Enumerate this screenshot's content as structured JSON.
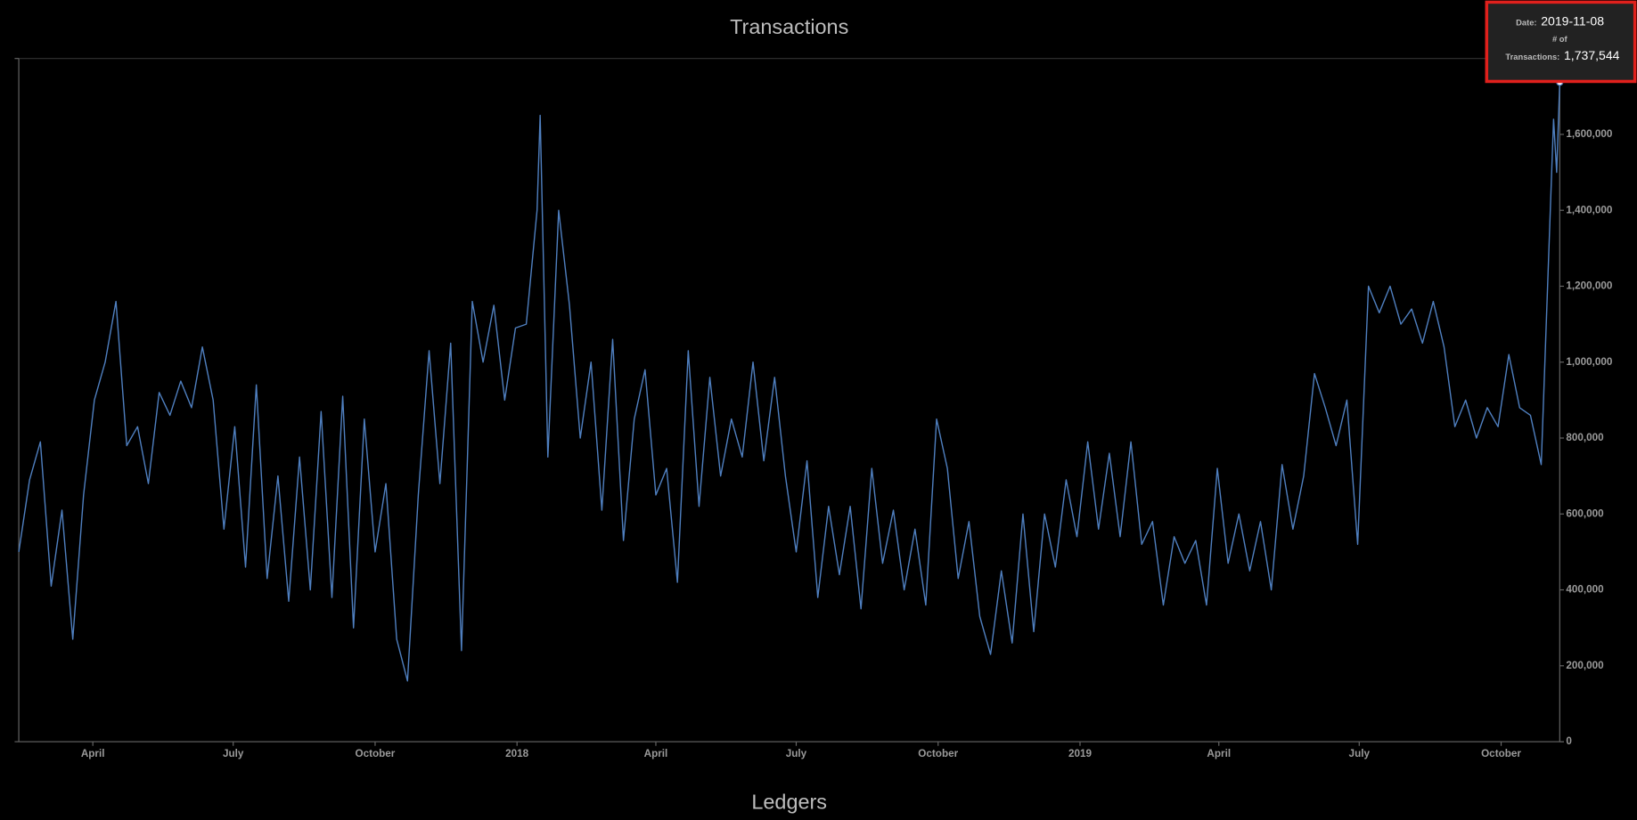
{
  "chart_data": {
    "type": "line",
    "title": "Transactions",
    "x": [
      "2017-02-12",
      "2017-02-19",
      "2017-02-26",
      "2017-03-05",
      "2017-03-12",
      "2017-03-19",
      "2017-03-26",
      "2017-04-02",
      "2017-04-09",
      "2017-04-16",
      "2017-04-23",
      "2017-04-30",
      "2017-05-07",
      "2017-05-14",
      "2017-05-21",
      "2017-05-28",
      "2017-06-04",
      "2017-06-11",
      "2017-06-18",
      "2017-06-25",
      "2017-07-02",
      "2017-07-09",
      "2017-07-16",
      "2017-07-23",
      "2017-07-30",
      "2017-08-06",
      "2017-08-13",
      "2017-08-20",
      "2017-08-27",
      "2017-09-03",
      "2017-09-10",
      "2017-09-17",
      "2017-09-24",
      "2017-10-01",
      "2017-10-08",
      "2017-10-15",
      "2017-10-22",
      "2017-10-29",
      "2017-11-05",
      "2017-11-12",
      "2017-11-19",
      "2017-11-26",
      "2017-12-03",
      "2017-12-10",
      "2017-12-17",
      "2017-12-24",
      "2017-12-31",
      "2018-01-07",
      "2018-01-14",
      "2018-01-16",
      "2018-01-21",
      "2018-01-28",
      "2018-02-04",
      "2018-02-11",
      "2018-02-18",
      "2018-02-25",
      "2018-03-04",
      "2018-03-11",
      "2018-03-18",
      "2018-03-25",
      "2018-04-01",
      "2018-04-08",
      "2018-04-15",
      "2018-04-22",
      "2018-04-29",
      "2018-05-06",
      "2018-05-13",
      "2018-05-20",
      "2018-05-27",
      "2018-06-03",
      "2018-06-10",
      "2018-06-17",
      "2018-06-24",
      "2018-07-01",
      "2018-07-08",
      "2018-07-15",
      "2018-07-22",
      "2018-07-29",
      "2018-08-05",
      "2018-08-12",
      "2018-08-19",
      "2018-08-26",
      "2018-09-02",
      "2018-09-09",
      "2018-09-16",
      "2018-09-23",
      "2018-09-30",
      "2018-10-07",
      "2018-10-14",
      "2018-10-21",
      "2018-10-28",
      "2018-11-04",
      "2018-11-11",
      "2018-11-18",
      "2018-11-25",
      "2018-12-02",
      "2018-12-09",
      "2018-12-16",
      "2018-12-23",
      "2018-12-30",
      "2019-01-06",
      "2019-01-13",
      "2019-01-20",
      "2019-01-27",
      "2019-02-03",
      "2019-02-10",
      "2019-02-17",
      "2019-02-24",
      "2019-03-03",
      "2019-03-10",
      "2019-03-17",
      "2019-03-24",
      "2019-03-31",
      "2019-04-07",
      "2019-04-14",
      "2019-04-21",
      "2019-04-28",
      "2019-05-05",
      "2019-05-12",
      "2019-05-19",
      "2019-05-26",
      "2019-06-02",
      "2019-06-09",
      "2019-06-16",
      "2019-06-23",
      "2019-06-30",
      "2019-07-07",
      "2019-07-14",
      "2019-07-21",
      "2019-07-28",
      "2019-08-04",
      "2019-08-11",
      "2019-08-18",
      "2019-08-25",
      "2019-09-01",
      "2019-09-08",
      "2019-09-15",
      "2019-09-22",
      "2019-09-29",
      "2019-10-06",
      "2019-10-13",
      "2019-10-20",
      "2019-10-27",
      "2019-11-01",
      "2019-11-04",
      "2019-11-06",
      "2019-11-08"
    ],
    "series": [
      {
        "name": "Transactions",
        "color": "#4f7fbf",
        "values": [
          500000,
          690000,
          790000,
          410000,
          610000,
          270000,
          650000,
          900000,
          1000000,
          1160000,
          780000,
          830000,
          680000,
          920000,
          860000,
          950000,
          880000,
          1040000,
          900000,
          560000,
          830000,
          460000,
          940000,
          430000,
          700000,
          370000,
          750000,
          400000,
          870000,
          380000,
          910000,
          300000,
          850000,
          500000,
          680000,
          270000,
          160000,
          650000,
          1030000,
          680000,
          1050000,
          240000,
          1160000,
          1000000,
          1150000,
          900000,
          1090000,
          1100000,
          1400000,
          1650000,
          750000,
          1400000,
          1150000,
          800000,
          1000000,
          610000,
          1060000,
          530000,
          850000,
          980000,
          650000,
          720000,
          420000,
          1030000,
          620000,
          960000,
          700000,
          850000,
          750000,
          1000000,
          740000,
          960000,
          700000,
          500000,
          740000,
          380000,
          620000,
          440000,
          620000,
          350000,
          720000,
          470000,
          610000,
          400000,
          560000,
          360000,
          850000,
          720000,
          430000,
          580000,
          330000,
          230000,
          450000,
          260000,
          600000,
          290000,
          600000,
          460000,
          690000,
          540000,
          790000,
          560000,
          760000,
          540000,
          790000,
          520000,
          580000,
          360000,
          540000,
          470000,
          530000,
          360000,
          720000,
          470000,
          600000,
          450000,
          580000,
          400000,
          730000,
          560000,
          700000,
          970000,
          880000,
          780000,
          900000,
          520000,
          1200000,
          1130000,
          1200000,
          1100000,
          1140000,
          1050000,
          1160000,
          1040000,
          830000,
          900000,
          800000,
          880000,
          830000,
          1020000,
          880000,
          860000,
          730000,
          1300000,
          1640000,
          1500000,
          1737544
        ]
      }
    ],
    "xlim": [
      "2017-02-12",
      "2019-11-08"
    ],
    "xticks": [
      {
        "value": "2017-04-01",
        "label": "April"
      },
      {
        "value": "2017-07-01",
        "label": "July"
      },
      {
        "value": "2017-10-01",
        "label": "October"
      },
      {
        "value": "2018-01-01",
        "label": "2018"
      },
      {
        "value": "2018-04-01",
        "label": "April"
      },
      {
        "value": "2018-07-01",
        "label": "July"
      },
      {
        "value": "2018-10-01",
        "label": "October"
      },
      {
        "value": "2019-01-01",
        "label": "2019"
      },
      {
        "value": "2019-04-01",
        "label": "April"
      },
      {
        "value": "2019-07-01",
        "label": "July"
      },
      {
        "value": "2019-10-01",
        "label": "October"
      }
    ],
    "ylim": [
      0,
      1800000
    ],
    "yticks": [
      0,
      {
        "value": 200000,
        "label": "200,000"
      },
      {
        "value": 400000,
        "label": "400,000"
      },
      {
        "value": 600000,
        "label": "600,000"
      },
      {
        "value": 800000,
        "label": "800,000"
      },
      {
        "value": 1000000,
        "label": "1,000,000"
      },
      {
        "value": 1200000,
        "label": "1,200,000"
      },
      {
        "value": 1400000,
        "label": "1,400,000"
      },
      {
        "value": 1600000,
        "label": "1,600,000"
      }
    ],
    "grid": false,
    "tooltip": {
      "date_name": "Date:",
      "date": "2019-11-08",
      "count_name_1": "# of",
      "count_name_2": "Transactions:",
      "count": "1,737,544"
    }
  },
  "next_section": {
    "title": "Ledgers"
  }
}
